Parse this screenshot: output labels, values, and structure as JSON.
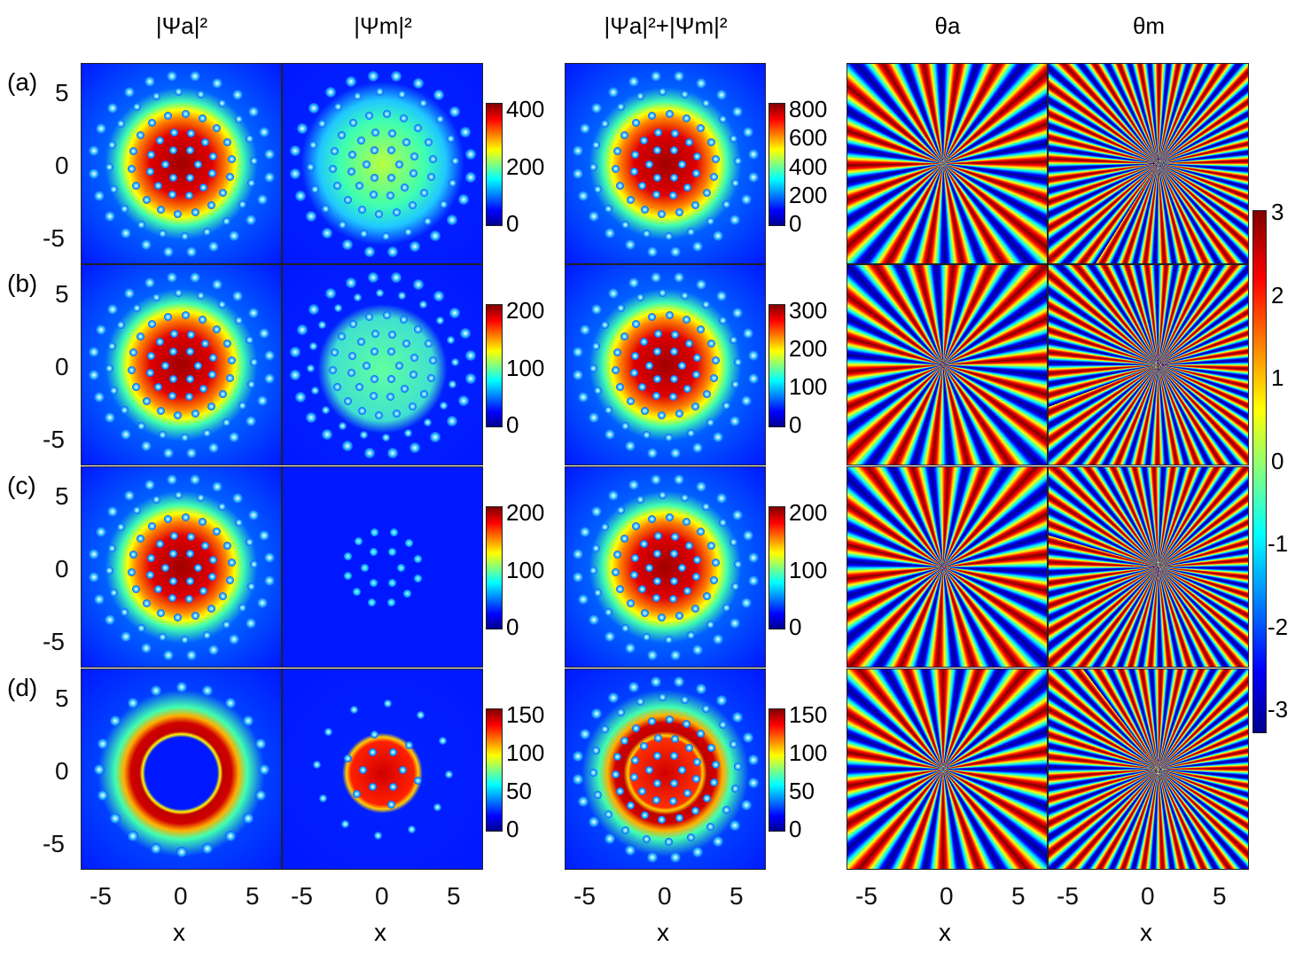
{
  "chart_data": {
    "type": "heatmap",
    "column_titles": [
      "|Ψa|²",
      "|Ψm|²",
      "|Ψa|²+|Ψm|²",
      "θa",
      "θm"
    ],
    "row_labels": [
      "(a)",
      "(b)",
      "(c)",
      "(d)"
    ],
    "xlabel": "x",
    "x_ticks": [
      "-5",
      "0",
      "5"
    ],
    "y_ticks": [
      "5",
      "0",
      "-5"
    ],
    "xlim": [
      -7,
      7
    ],
    "ylim": [
      -7,
      7
    ],
    "density_colorbars": [
      {
        "row": "(a)",
        "ticks_m": [
          "400",
          "200",
          "0"
        ],
        "range_m": [
          0,
          540
        ],
        "ticks_sum": [
          "800",
          "600",
          "400",
          "200",
          "0"
        ],
        "range_sum": [
          0,
          860
        ]
      },
      {
        "row": "(b)",
        "ticks_m": [
          "200",
          "100",
          "0"
        ],
        "range_m": [
          0,
          230
        ],
        "ticks_sum": [
          "300",
          "200",
          "100",
          "0"
        ],
        "range_sum": [
          0,
          340
        ]
      },
      {
        "row": "(c)",
        "ticks_m": [
          "200",
          "100",
          "0"
        ],
        "range_m": [
          0,
          230
        ],
        "ticks_sum": [
          "200",
          "100",
          "0"
        ],
        "range_sum": [
          0,
          250
        ]
      },
      {
        "row": "(d)",
        "ticks_m": [
          "150",
          "100",
          "50",
          "0"
        ],
        "range_m": [
          0,
          170
        ],
        "ticks_sum": [
          "150",
          "100",
          "50",
          "0"
        ],
        "range_sum": [
          0,
          170
        ]
      }
    ],
    "phase_colorbar": {
      "ticks": [
        "3",
        "2",
        "1",
        "0",
        "-1",
        "-2",
        "-3"
      ],
      "range": [
        -3.14,
        3.14
      ]
    },
    "colormap": "jet"
  }
}
